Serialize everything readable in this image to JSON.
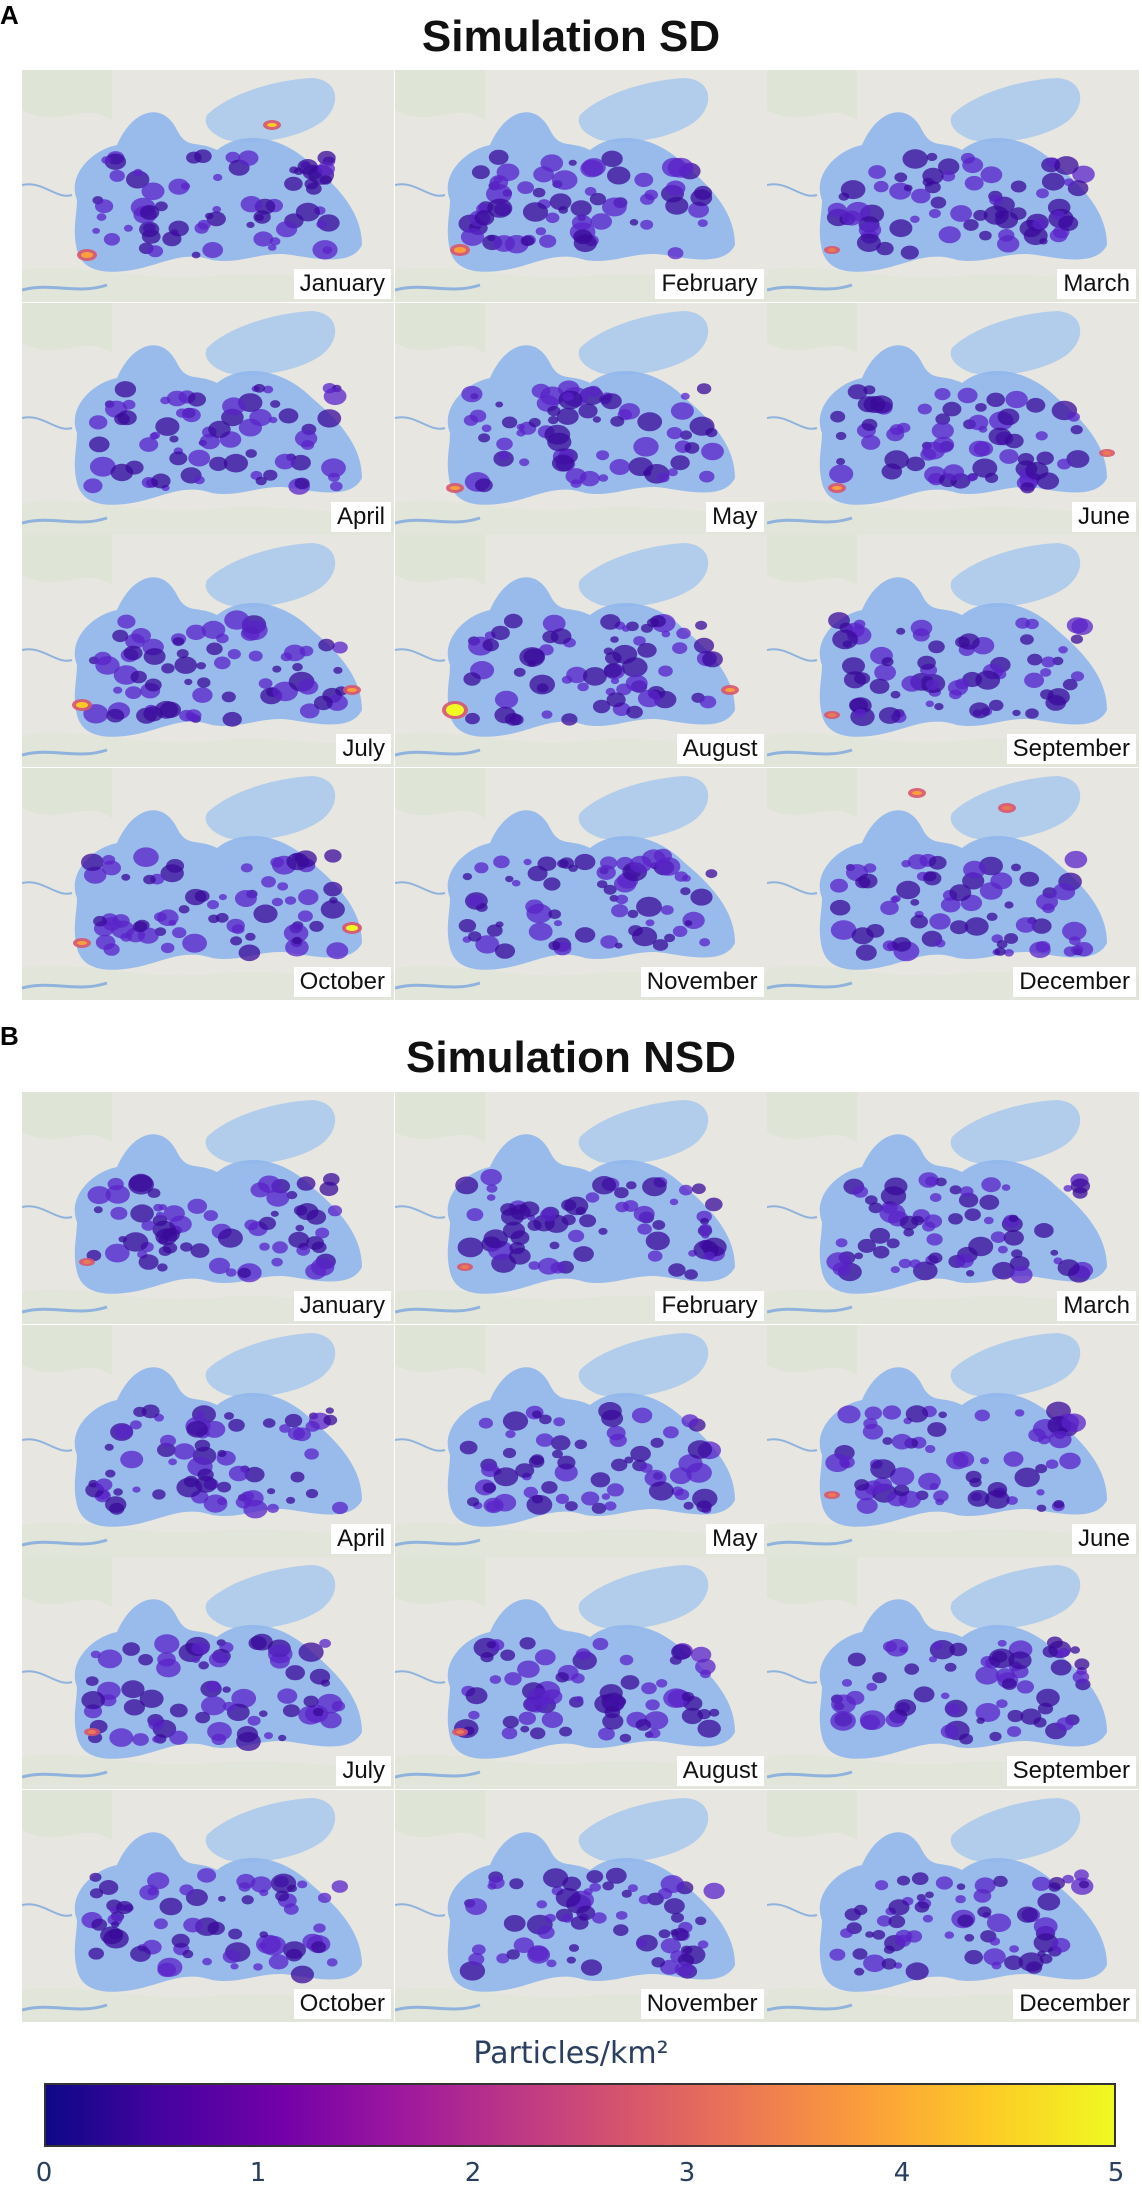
{
  "panels": [
    {
      "letter": "A",
      "title": "Simulation SD",
      "months": [
        "January",
        "February",
        "March",
        "April",
        "May",
        "June",
        "July",
        "August",
        "September",
        "October",
        "November",
        "December"
      ]
    },
    {
      "letter": "B",
      "title": "Simulation NSD",
      "months": [
        "January",
        "February",
        "March",
        "April",
        "May",
        "June",
        "July",
        "August",
        "September",
        "October",
        "November",
        "December"
      ]
    }
  ],
  "colorbar": {
    "title": "Particles/km²",
    "ticks": [
      "0",
      "1",
      "2",
      "3",
      "4",
      "5"
    ],
    "colorscale": [
      "#0d0887",
      "#46039f",
      "#7201a8",
      "#9c179e",
      "#bd3786",
      "#d8576b",
      "#ed7953",
      "#fb9f3a",
      "#fdca26",
      "#f0f921"
    ]
  },
  "map_colors": {
    "land": "#e7e6e1",
    "water": "#a8c8ec",
    "sea_low": "#8fb6ec",
    "hotspot": "#f0f921"
  }
}
